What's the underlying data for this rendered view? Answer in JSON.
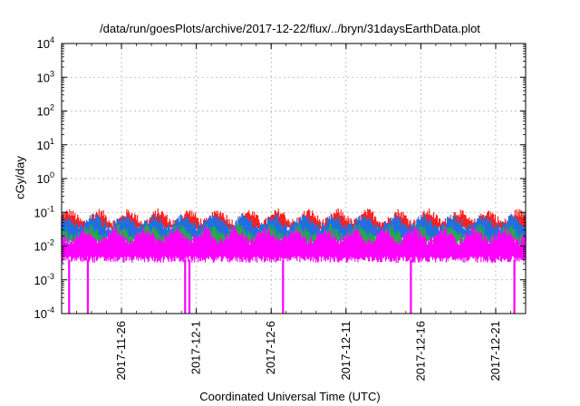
{
  "chart_data": {
    "type": "line",
    "title": "/data/run/goesPlots/archive/2017-12-22/flux/../bryn/31daysEarthData.plot",
    "xlabel": "Coordinated Universal Time (UTC)",
    "ylabel": "cGy/day",
    "yscale": "log",
    "ylim": [
      0.0001,
      10000
    ],
    "xlim": [
      "2017-11-22",
      "2017-12-23"
    ],
    "grid": true,
    "y_ticks": [
      {
        "value": 0.0001,
        "mant": "10",
        "exp": "-4"
      },
      {
        "value": 0.001,
        "mant": "10",
        "exp": "-3"
      },
      {
        "value": 0.01,
        "mant": "10",
        "exp": "-2"
      },
      {
        "value": 0.1,
        "mant": "10",
        "exp": "-1"
      },
      {
        "value": 1,
        "mant": "10",
        "exp": "0"
      },
      {
        "value": 10,
        "mant": "10",
        "exp": "1"
      },
      {
        "value": 100,
        "mant": "10",
        "exp": "2"
      },
      {
        "value": 1000,
        "mant": "10",
        "exp": "3"
      },
      {
        "value": 10000,
        "mant": "10",
        "exp": "4"
      }
    ],
    "x_ticks": [
      {
        "date": "2017-11-26",
        "label": "2017-11-26"
      },
      {
        "date": "2017-12-01",
        "label": "2017-12-1"
      },
      {
        "date": "2017-12-06",
        "label": "2017-12-6"
      },
      {
        "date": "2017-12-11",
        "label": "2017-12-11"
      },
      {
        "date": "2017-12-16",
        "label": "2017-12-16"
      },
      {
        "date": "2017-12-21",
        "label": "2017-12-21"
      }
    ],
    "series": [
      {
        "color": "#ff2020",
        "upper": 0.07,
        "lower": 0.03
      },
      {
        "color": "#1f6fe0",
        "upper": 0.05,
        "lower": 0.015
      },
      {
        "color": "#2aa84a",
        "upper": 0.025,
        "lower": 0.012
      },
      {
        "color": "#ff00ff",
        "upper": 0.02,
        "lower": 0.004
      }
    ],
    "dropouts": [
      "2017-11-22T12:00",
      "2017-11-23T18:00",
      "2017-11-30T06:00",
      "2017-11-30T13:00",
      "2017-12-06T19:00",
      "2017-12-15T08:00",
      "2017-12-22T06:00"
    ]
  }
}
